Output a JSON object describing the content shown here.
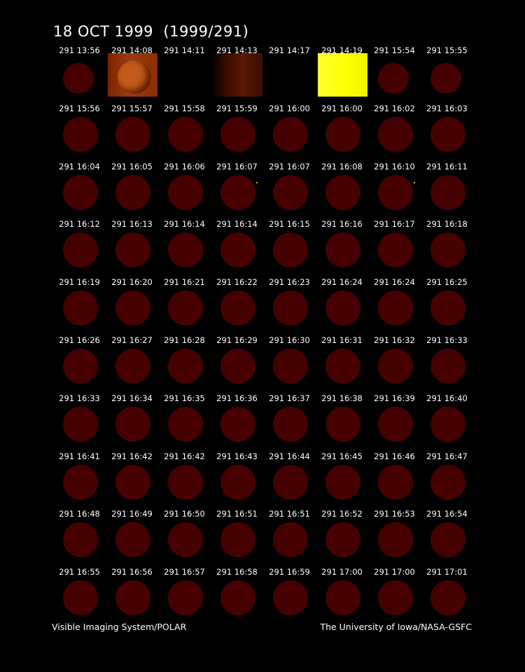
{
  "header": {
    "title": "18 OCT 1999  (1999/291)"
  },
  "footer": {
    "left": "Visible Imaging System/POLAR",
    "right": "The University of Iowa/NASA-GSFC"
  },
  "frames": [
    {
      "label": "291 13:56",
      "type": "disk"
    },
    {
      "label": "291 14:08",
      "type": "orange-square"
    },
    {
      "label": "291 14:11",
      "type": "blank"
    },
    {
      "label": "291 14:13",
      "type": "noise-square"
    },
    {
      "label": "291 14:17",
      "type": "blank"
    },
    {
      "label": "291 14:19",
      "type": "yellow-square"
    },
    {
      "label": "291 15:54",
      "type": "disk"
    },
    {
      "label": "291 15:55",
      "type": "disk"
    },
    {
      "label": "291 15:56",
      "type": "disk"
    },
    {
      "label": "291 15:57",
      "type": "disk"
    },
    {
      "label": "291 15:58",
      "type": "disk"
    },
    {
      "label": "291 15:59",
      "type": "disk"
    },
    {
      "label": "291 16:00",
      "type": "disk"
    },
    {
      "label": "291 16:00",
      "type": "disk"
    },
    {
      "label": "291 16:02",
      "type": "disk"
    },
    {
      "label": "291 16:03",
      "type": "disk"
    },
    {
      "label": "291 16:04",
      "type": "disk"
    },
    {
      "label": "291 16:05",
      "type": "disk"
    },
    {
      "label": "291 16:06",
      "type": "disk"
    },
    {
      "label": "291 16:07",
      "type": "disk",
      "dot": true
    },
    {
      "label": "291 16:07",
      "type": "disk"
    },
    {
      "label": "291 16:08",
      "type": "disk"
    },
    {
      "label": "291 16:10",
      "type": "disk",
      "dot": true
    },
    {
      "label": "291 16:11",
      "type": "disk"
    },
    {
      "label": "291 16:12",
      "type": "disk"
    },
    {
      "label": "291 16:13",
      "type": "disk"
    },
    {
      "label": "291 16:14",
      "type": "disk"
    },
    {
      "label": "291 16:14",
      "type": "disk"
    },
    {
      "label": "291 16:15",
      "type": "disk"
    },
    {
      "label": "291 16:16",
      "type": "disk"
    },
    {
      "label": "291 16:17",
      "type": "disk"
    },
    {
      "label": "291 16:18",
      "type": "disk"
    },
    {
      "label": "291 16:19",
      "type": "disk"
    },
    {
      "label": "291 16:20",
      "type": "disk"
    },
    {
      "label": "291 16:21",
      "type": "disk"
    },
    {
      "label": "291 16:22",
      "type": "disk"
    },
    {
      "label": "291 16:23",
      "type": "disk"
    },
    {
      "label": "291 16:24",
      "type": "disk"
    },
    {
      "label": "291 16:24",
      "type": "disk"
    },
    {
      "label": "291 16:25",
      "type": "disk"
    },
    {
      "label": "291 16:26",
      "type": "disk"
    },
    {
      "label": "291 16:27",
      "type": "disk"
    },
    {
      "label": "291 16:28",
      "type": "disk"
    },
    {
      "label": "291 16:29",
      "type": "disk"
    },
    {
      "label": "291 16:30",
      "type": "disk"
    },
    {
      "label": "291 16:31",
      "type": "disk"
    },
    {
      "label": "291 16:32",
      "type": "disk"
    },
    {
      "label": "291 16:33",
      "type": "disk"
    },
    {
      "label": "291 16:33",
      "type": "disk"
    },
    {
      "label": "291 16:34",
      "type": "disk"
    },
    {
      "label": "291 16:35",
      "type": "disk"
    },
    {
      "label": "291 16:36",
      "type": "disk"
    },
    {
      "label": "291 16:37",
      "type": "disk"
    },
    {
      "label": "291 16:38",
      "type": "disk"
    },
    {
      "label": "291 16:39",
      "type": "disk"
    },
    {
      "label": "291 16:40",
      "type": "disk"
    },
    {
      "label": "291 16:41",
      "type": "disk"
    },
    {
      "label": "291 16:42",
      "type": "disk"
    },
    {
      "label": "291 16:42",
      "type": "disk"
    },
    {
      "label": "291 16:43",
      "type": "disk"
    },
    {
      "label": "291 16:44",
      "type": "disk"
    },
    {
      "label": "291 16:45",
      "type": "disk"
    },
    {
      "label": "291 16:46",
      "type": "disk"
    },
    {
      "label": "291 16:47",
      "type": "disk"
    },
    {
      "label": "291 16:48",
      "type": "disk"
    },
    {
      "label": "291 16:49",
      "type": "disk"
    },
    {
      "label": "291 16:50",
      "type": "disk"
    },
    {
      "label": "291 16:51",
      "type": "disk"
    },
    {
      "label": "291 16:51",
      "type": "disk"
    },
    {
      "label": "291 16:52",
      "type": "disk"
    },
    {
      "label": "291 16:53",
      "type": "disk"
    },
    {
      "label": "291 16:54",
      "type": "disk"
    },
    {
      "label": "291 16:55",
      "type": "disk"
    },
    {
      "label": "291 16:56",
      "type": "disk"
    },
    {
      "label": "291 16:57",
      "type": "disk"
    },
    {
      "label": "291 16:58",
      "type": "disk"
    },
    {
      "label": "291 16:59",
      "type": "disk"
    },
    {
      "label": "291 17:00",
      "type": "disk"
    },
    {
      "label": "291 17:00",
      "type": "disk"
    },
    {
      "label": "291 17:01",
      "type": "disk"
    }
  ],
  "colors": {
    "background": "#000000",
    "disk": "#470000",
    "text": "#ffffff",
    "yellow": "#ffff00",
    "orange": "#9b3a10"
  }
}
